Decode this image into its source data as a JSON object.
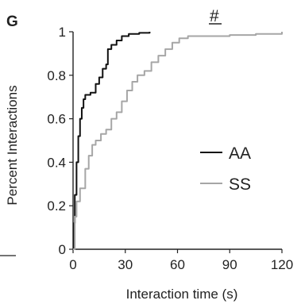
{
  "panel_letter": "G",
  "significance_mark": "#",
  "chart_data": {
    "type": "line",
    "xlabel": "Interaction time (s)",
    "ylabel": "Percent Interactions",
    "xlim": [
      0,
      120
    ],
    "ylim": [
      0,
      1
    ],
    "x_ticks": [
      0,
      30,
      60,
      90,
      120
    ],
    "y_ticks": [
      0,
      0.2,
      0.4,
      0.6,
      0.8,
      1
    ],
    "y_tick_labels": [
      "0",
      "0.2",
      "0.4",
      "0.6",
      "0.8",
      "1"
    ],
    "legend_position": "center-right",
    "grid": false,
    "series": [
      {
        "name": "AA",
        "color": "#111111",
        "points": [
          [
            0,
            0
          ],
          [
            0.5,
            0.12
          ],
          [
            1,
            0.25
          ],
          [
            2,
            0.4
          ],
          [
            3,
            0.52
          ],
          [
            4,
            0.6
          ],
          [
            5,
            0.65
          ],
          [
            6,
            0.69
          ],
          [
            7,
            0.71
          ],
          [
            10,
            0.72
          ],
          [
            12,
            0.72
          ],
          [
            13,
            0.76
          ],
          [
            15,
            0.79
          ],
          [
            17,
            0.83
          ],
          [
            19,
            0.85
          ],
          [
            20,
            0.92
          ],
          [
            22,
            0.94
          ],
          [
            25,
            0.96
          ],
          [
            28,
            0.98
          ],
          [
            32,
            0.99
          ],
          [
            38,
            0.995
          ],
          [
            44,
            1
          ]
        ]
      },
      {
        "name": "SS",
        "color": "#a6a6a6",
        "points": [
          [
            0,
            0
          ],
          [
            1,
            0.15
          ],
          [
            2,
            0.22
          ],
          [
            4,
            0.28
          ],
          [
            7,
            0.37
          ],
          [
            9,
            0.43
          ],
          [
            11,
            0.48
          ],
          [
            13,
            0.5
          ],
          [
            16,
            0.53
          ],
          [
            19,
            0.55
          ],
          [
            22,
            0.6
          ],
          [
            25,
            0.63
          ],
          [
            28,
            0.68
          ],
          [
            31,
            0.73
          ],
          [
            34,
            0.77
          ],
          [
            37,
            0.8
          ],
          [
            41,
            0.82
          ],
          [
            45,
            0.86
          ],
          [
            49,
            0.89
          ],
          [
            53,
            0.92
          ],
          [
            57,
            0.95
          ],
          [
            61,
            0.97
          ],
          [
            66,
            0.98
          ],
          [
            75,
            0.98
          ],
          [
            90,
            0.985
          ],
          [
            105,
            0.99
          ],
          [
            120,
            1
          ]
        ]
      }
    ]
  }
}
